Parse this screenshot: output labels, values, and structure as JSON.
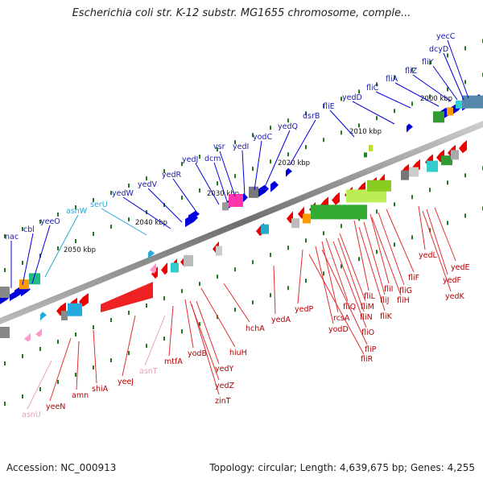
{
  "title": "Escherichia coli str. K-12 substr. MG1655 chromosome, comple...",
  "footer": {
    "accession": "Accession: NC_000913",
    "summary": "Topology: circular; Length: 4,639,675 bp; Genes: 4,255"
  },
  "colors": {
    "upper_gene_label": "#1a1aaa",
    "lower_gene_label": "#b30000",
    "trna_upper_label": "#2aa8d8",
    "trna_lower_label": "#e79ec0",
    "backbone": "#777777",
    "forward_cds": "#0000dd",
    "reverse_cds": "#ee0000",
    "tick": "#227722"
  },
  "scale_labels": [
    "2000 kbp",
    "2010 kbp",
    "2020 kbp",
    "2030 kbp",
    "2040 kbp",
    "2050 kbp"
  ],
  "upper_labels": [
    {
      "text": "yecC",
      "color": "#1a1aaa"
    },
    {
      "text": "dcyD",
      "color": "#1a1aaa"
    },
    {
      "text": "fliY",
      "color": "#1a1aaa"
    },
    {
      "text": "fliZ",
      "color": "#1a1aaa"
    },
    {
      "text": "fliA",
      "color": "#1a1aaa"
    },
    {
      "text": "fliC",
      "color": "#1a1aaa"
    },
    {
      "text": "yedD",
      "color": "#1a1aaa"
    },
    {
      "text": "fliE",
      "color": "#1a1aaa"
    },
    {
      "text": "dsrB",
      "color": "#1a1aaa"
    },
    {
      "text": "yedQ",
      "color": "#1a1aaa"
    },
    {
      "text": "yodC",
      "color": "#1a1aaa"
    },
    {
      "text": "yedI",
      "color": "#1a1aaa"
    },
    {
      "text": "vsr",
      "color": "#1a1aaa"
    },
    {
      "text": "dcm",
      "color": "#1a1aaa"
    },
    {
      "text": "yedJ",
      "color": "#1a1aaa"
    },
    {
      "text": "yedR",
      "color": "#1a1aaa"
    },
    {
      "text": "yedV",
      "color": "#1a1aaa"
    },
    {
      "text": "yedW",
      "color": "#1a1aaa"
    },
    {
      "text": "serU",
      "color": "#2aa8d8"
    },
    {
      "text": "asnW",
      "color": "#2aa8d8"
    },
    {
      "text": "yeeO",
      "color": "#1a1aaa"
    },
    {
      "text": "cbl",
      "color": "#1a1aaa"
    },
    {
      "text": "nac",
      "color": "#1a1aaa"
    }
  ],
  "lower_labels": [
    {
      "text": "yedE",
      "color": "#b30000"
    },
    {
      "text": "yedL",
      "color": "#b30000"
    },
    {
      "text": "yedF",
      "color": "#b30000"
    },
    {
      "text": "yedK",
      "color": "#b30000"
    },
    {
      "text": "fliF",
      "color": "#b30000"
    },
    {
      "text": "fliG",
      "color": "#b30000"
    },
    {
      "text": "fliI",
      "color": "#b30000"
    },
    {
      "text": "fliH",
      "color": "#b30000"
    },
    {
      "text": "fliL",
      "color": "#b30000"
    },
    {
      "text": "fliJ",
      "color": "#b30000"
    },
    {
      "text": "fliK",
      "color": "#b30000"
    },
    {
      "text": "fliQ",
      "color": "#b30000"
    },
    {
      "text": "fliM",
      "color": "#b30000"
    },
    {
      "text": "fliN",
      "color": "#b30000"
    },
    {
      "text": "fliO",
      "color": "#b30000"
    },
    {
      "text": "rcsA",
      "color": "#b30000"
    },
    {
      "text": "yodD",
      "color": "#b30000"
    },
    {
      "text": "fliP",
      "color": "#b30000"
    },
    {
      "text": "fliR",
      "color": "#b30000"
    },
    {
      "text": "yedP",
      "color": "#b30000"
    },
    {
      "text": "yedA",
      "color": "#b30000"
    },
    {
      "text": "hchA",
      "color": "#b30000"
    },
    {
      "text": "hiuH",
      "color": "#b30000"
    },
    {
      "text": "yodB",
      "color": "#b30000"
    },
    {
      "text": "yedY",
      "color": "#b30000"
    },
    {
      "text": "yedZ",
      "color": "#b30000"
    },
    {
      "text": "zinT",
      "color": "#b30000"
    },
    {
      "text": "mtfA",
      "color": "#b30000"
    },
    {
      "text": "asnT",
      "color": "#e79ec0"
    },
    {
      "text": "yeeJ",
      "color": "#b30000"
    },
    {
      "text": "shiA",
      "color": "#b30000"
    },
    {
      "text": "amn",
      "color": "#b30000"
    },
    {
      "text": "yeeN",
      "color": "#b30000"
    },
    {
      "text": "asnU",
      "color": "#e79ec0"
    }
  ]
}
